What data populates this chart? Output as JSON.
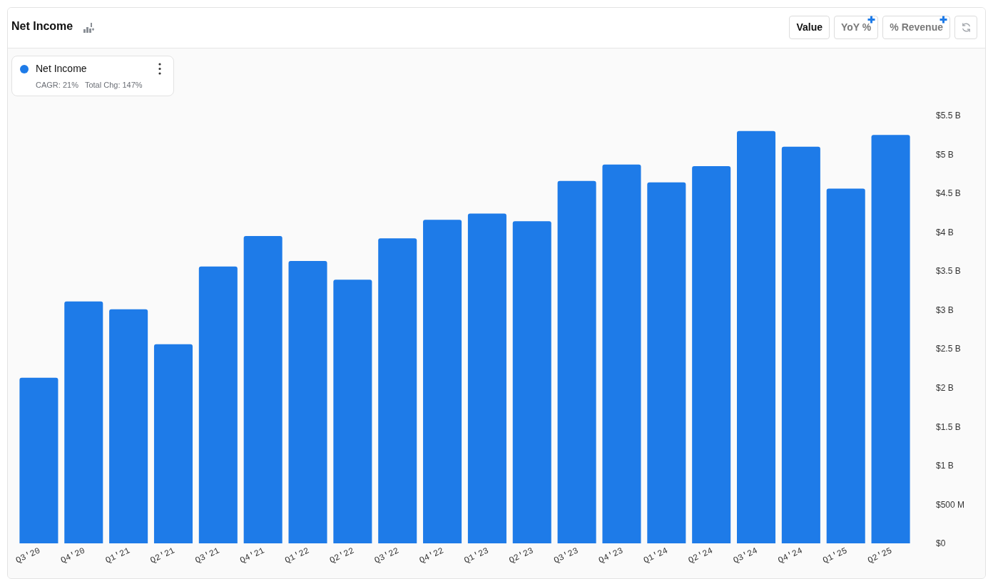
{
  "chart_data": {
    "type": "bar",
    "title": "Net Income",
    "categories": [
      "Q3'20",
      "Q4'20",
      "Q1'21",
      "Q2'21",
      "Q3'21",
      "Q4'21",
      "Q1'22",
      "Q2'22",
      "Q3'22",
      "Q4'22",
      "Q1'23",
      "Q2'23",
      "Q3'23",
      "Q4'23",
      "Q1'24",
      "Q2'24",
      "Q3'24",
      "Q4'24",
      "Q1'25",
      "Q2'25"
    ],
    "series": [
      {
        "name": "Net Income",
        "color": "#1e7be8",
        "values": [
          2130000000,
          3110000000,
          3010000000,
          2560000000,
          3560000000,
          3950000000,
          3630000000,
          3390000000,
          3920000000,
          4160000000,
          4240000000,
          4140000000,
          4660000000,
          4870000000,
          4640000000,
          4850000000,
          5300000000,
          5100000000,
          4560000000,
          5250000000
        ]
      }
    ],
    "ylim": [
      0,
      5500000000
    ],
    "yticks": [
      {
        "value": 0,
        "label": "$0"
      },
      {
        "value": 500000000,
        "label": "$500 M"
      },
      {
        "value": 1000000000,
        "label": "$1 B"
      },
      {
        "value": 1500000000,
        "label": "$1.5 B"
      },
      {
        "value": 2000000000,
        "label": "$2 B"
      },
      {
        "value": 2500000000,
        "label": "$2.5 B"
      },
      {
        "value": 3000000000,
        "label": "$3 B"
      },
      {
        "value": 3500000000,
        "label": "$3.5 B"
      },
      {
        "value": 4000000000,
        "label": "$4 B"
      },
      {
        "value": 4500000000,
        "label": "$4.5 B"
      },
      {
        "value": 5000000000,
        "label": "$5 B"
      },
      {
        "value": 5500000000,
        "label": "$5.5 B"
      }
    ],
    "legend": "top left",
    "annotations": [
      "CAGR: 21%",
      "Total Chg: 147%",
      "Value",
      "YoY %",
      "% Revenue"
    ]
  }
}
